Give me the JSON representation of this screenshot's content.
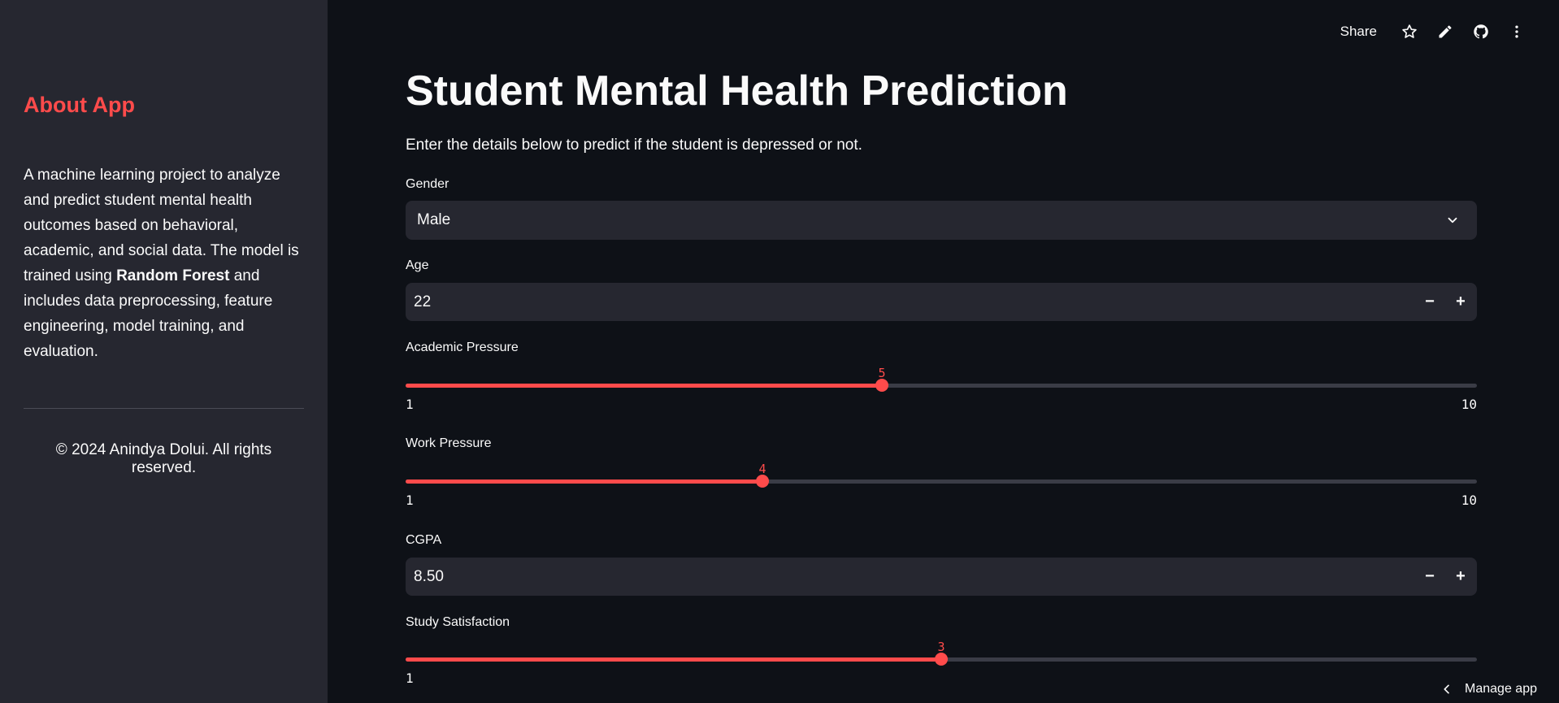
{
  "sidebar": {
    "title": "About App",
    "desc_part1": "A machine learning project to analyze and predict student mental health outcomes based on behavioral, academic, and social data. The model is trained using ",
    "desc_bold": "Random Forest",
    "desc_part2": " and includes data preprocessing, feature engineering, model training, and evaluation.",
    "footer": "© 2024 Anindya Dolui. All rights reserved."
  },
  "toolbar": {
    "share_label": "Share",
    "icons": [
      "star-icon",
      "pencil-icon",
      "github-icon",
      "more-vertical-icon"
    ]
  },
  "main": {
    "title": "Student Mental Health Prediction",
    "subtitle": "Enter the details below to predict if the student is depressed or not."
  },
  "fields": {
    "gender": {
      "label": "Gender",
      "value": "Male"
    },
    "age": {
      "label": "Age",
      "value": "22",
      "minus": "−",
      "plus": "+"
    },
    "academic_pressure": {
      "label": "Academic Pressure",
      "value": 5,
      "min": 1,
      "max": 10,
      "value_text": "5",
      "min_text": "1",
      "max_text": "10"
    },
    "work_pressure": {
      "label": "Work Pressure",
      "value": 4,
      "min": 1,
      "max": 10,
      "value_text": "4",
      "min_text": "1",
      "max_text": "10"
    },
    "cgpa": {
      "label": "CGPA",
      "value": "8.50",
      "minus": "−",
      "plus": "+"
    },
    "study_satisfaction": {
      "label": "Study Satisfaction",
      "value": 3,
      "min": 1,
      "max": 5,
      "value_text": "3",
      "min_text": "1"
    }
  },
  "footer": {
    "manage_label": "Manage app"
  },
  "colors": {
    "accent": "#ff4b4b",
    "background": "#0e1117",
    "sidebar": "#262730",
    "input": "#262730"
  }
}
